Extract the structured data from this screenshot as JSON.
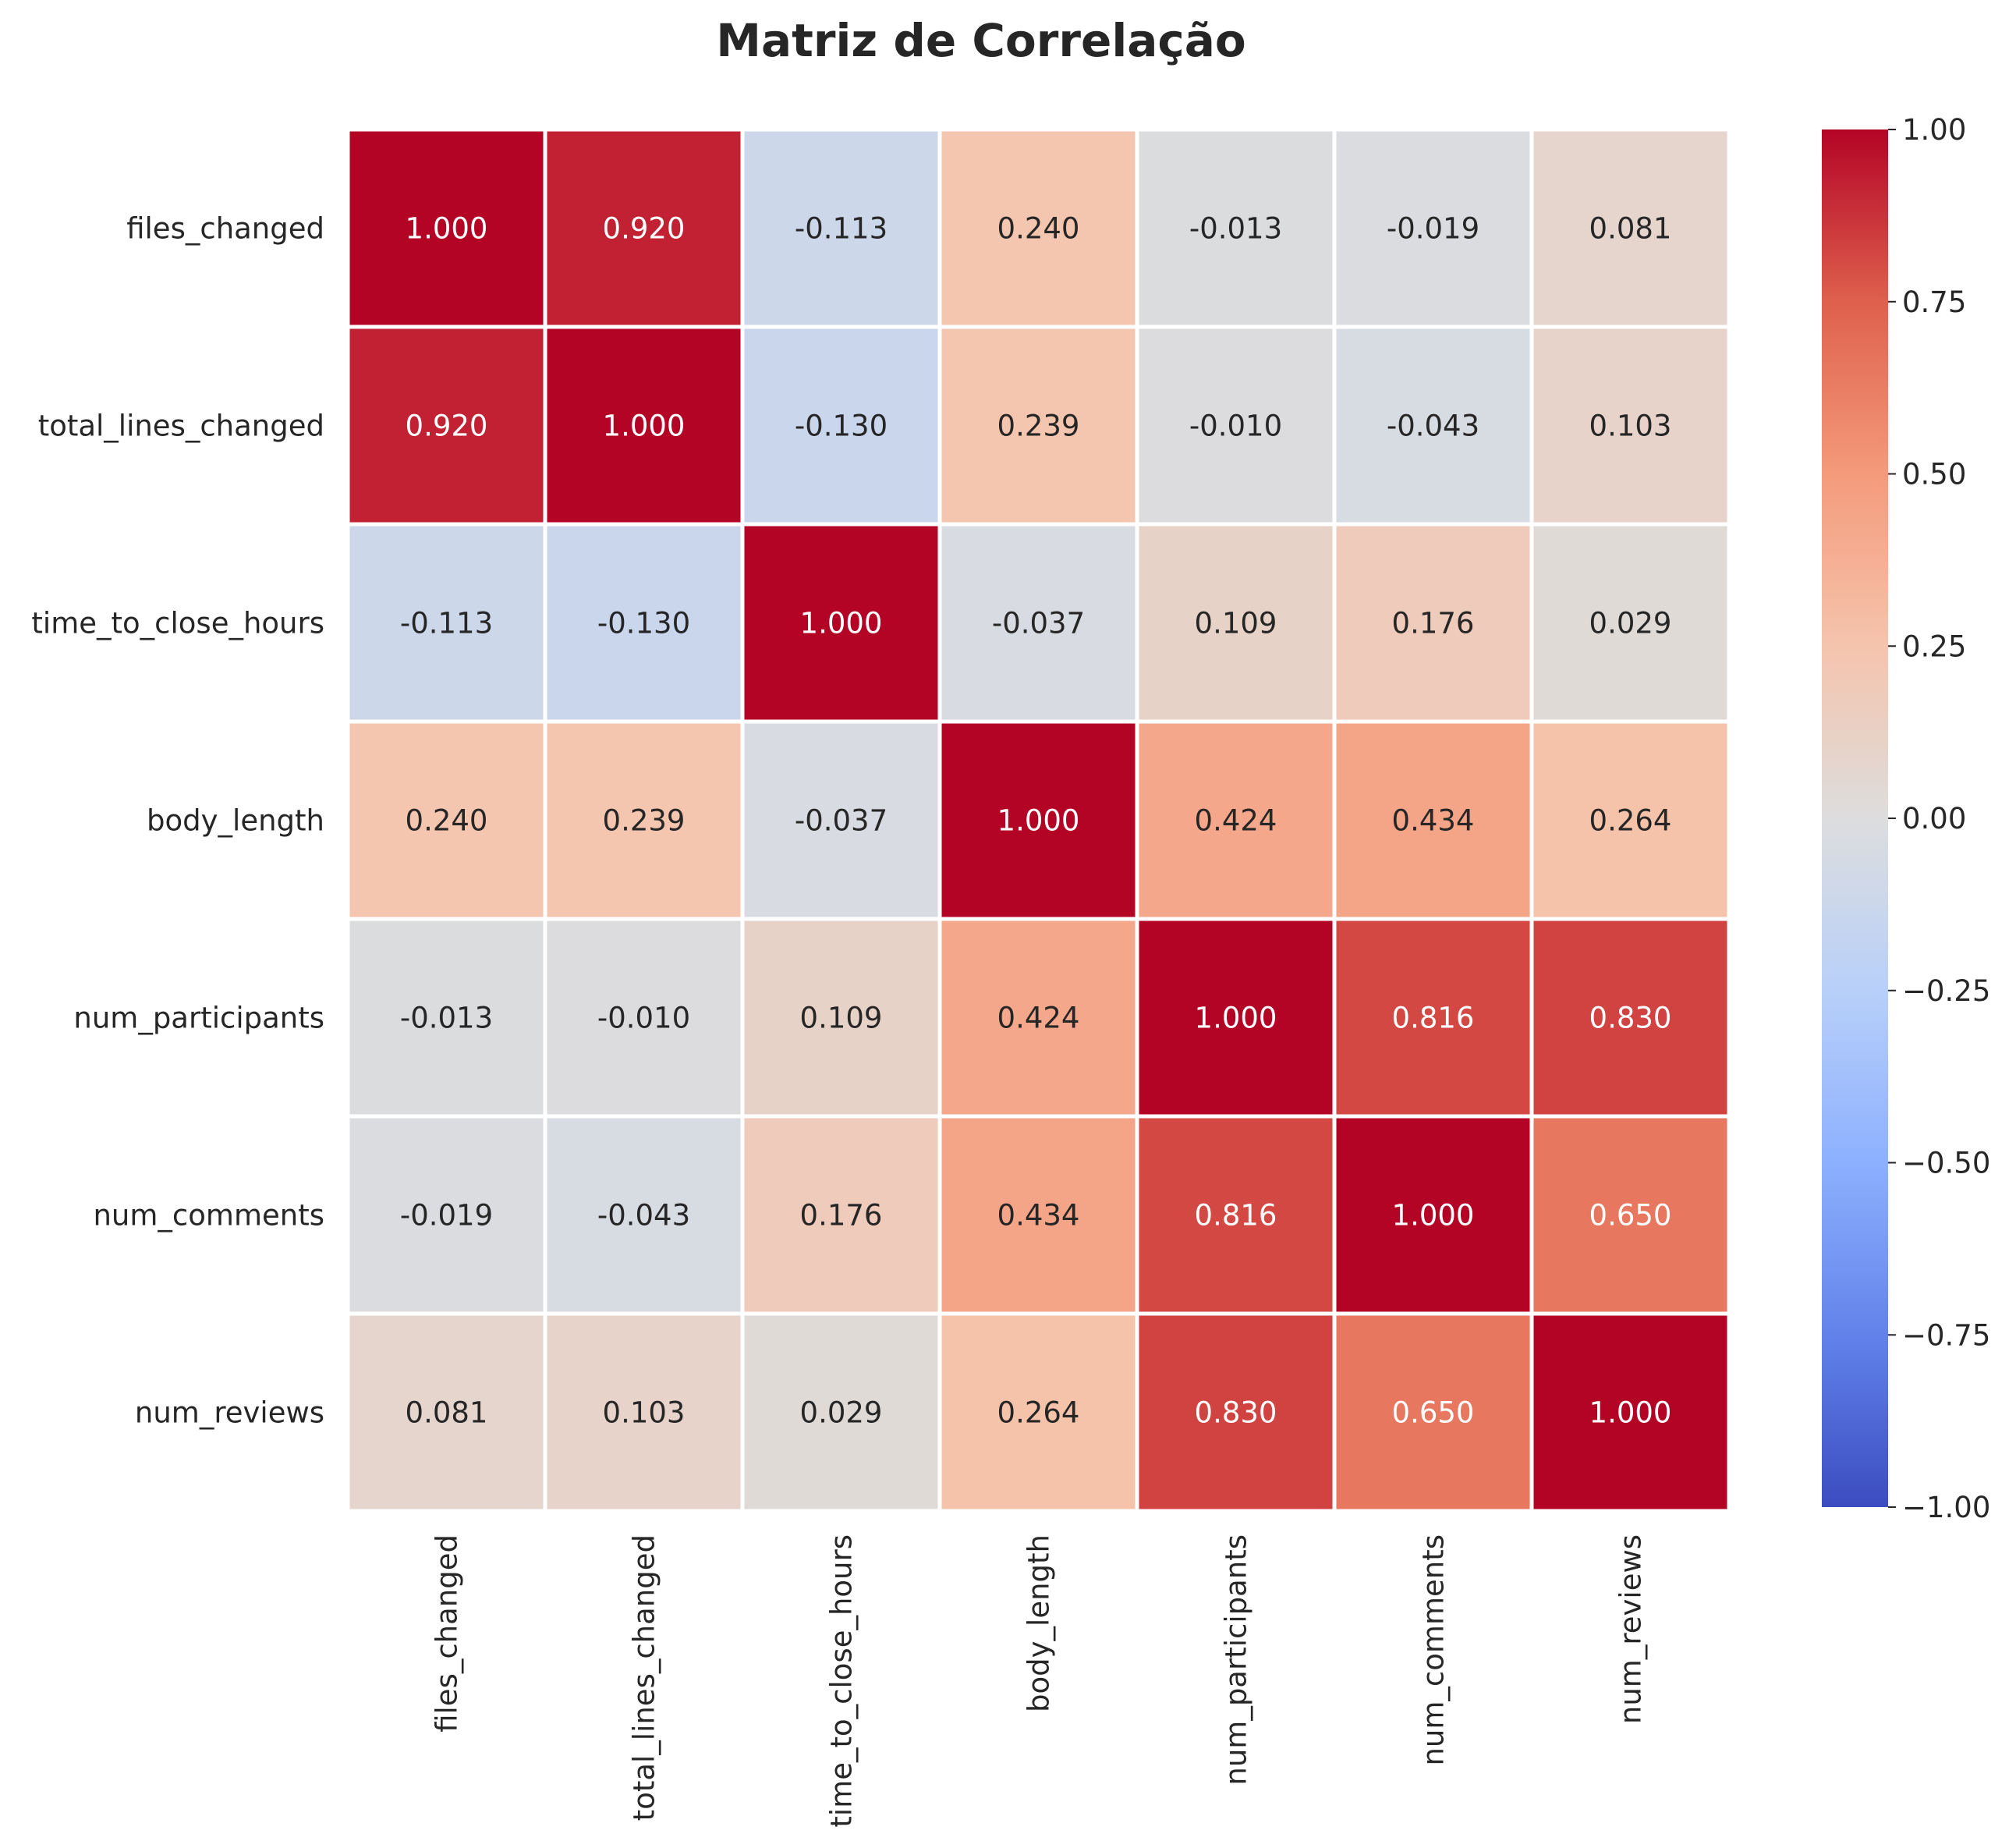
{
  "chart_data": {
    "type": "heatmap",
    "title": "Matriz de Correlação",
    "variables": [
      "files_changed",
      "total_lines_changed",
      "time_to_close_hours",
      "body_length",
      "num_participants",
      "num_comments",
      "num_reviews"
    ],
    "matrix": [
      [
        1.0,
        0.92,
        -0.113,
        0.24,
        -0.013,
        -0.019,
        0.081
      ],
      [
        0.92,
        1.0,
        -0.13,
        0.239,
        -0.01,
        -0.043,
        0.103
      ],
      [
        -0.113,
        -0.13,
        1.0,
        -0.037,
        0.109,
        0.176,
        0.029
      ],
      [
        0.24,
        0.239,
        -0.037,
        1.0,
        0.424,
        0.434,
        0.264
      ],
      [
        -0.013,
        -0.01,
        0.109,
        0.424,
        1.0,
        0.816,
        0.83
      ],
      [
        -0.019,
        -0.043,
        0.176,
        0.434,
        0.816,
        1.0,
        0.65
      ],
      [
        0.081,
        0.103,
        0.029,
        0.264,
        0.83,
        0.65,
        1.0
      ]
    ],
    "value_format": "3 decimals",
    "colormap": "coolwarm",
    "vmin": -1.0,
    "vmax": 1.0,
    "colorbar_ticks": [
      {
        "value": 1.0,
        "label": "1.00"
      },
      {
        "value": 0.75,
        "label": "0.75"
      },
      {
        "value": 0.5,
        "label": "0.50"
      },
      {
        "value": 0.25,
        "label": "0.25"
      },
      {
        "value": 0.0,
        "label": "0.00"
      },
      {
        "value": -0.25,
        "label": "−0.25"
      },
      {
        "value": -0.5,
        "label": "−0.50"
      },
      {
        "value": -0.75,
        "label": "−0.75"
      },
      {
        "value": -1.0,
        "label": "−1.00"
      }
    ],
    "colorbar_placement": "right",
    "cell_border_color": "#ffffff",
    "text_color_dark": "#262626",
    "text_color_light": "#ffffff"
  }
}
